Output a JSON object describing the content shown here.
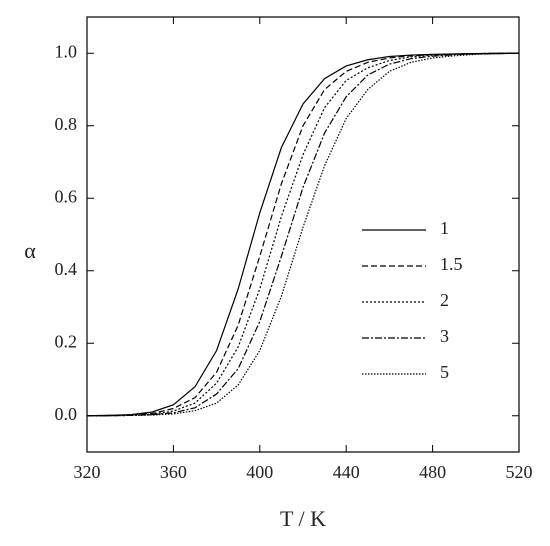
{
  "chart_data": {
    "type": "line",
    "xlabel": "T / K",
    "ylabel": "α",
    "x": [
      320,
      330,
      340,
      350,
      360,
      370,
      380,
      390,
      400,
      410,
      420,
      430,
      440,
      450,
      460,
      470,
      480,
      490,
      500,
      510,
      520
    ],
    "series": [
      {
        "name": "1",
        "color": "#000000",
        "dash": "none",
        "values": [
          0,
          0.001,
          0.003,
          0.01,
          0.03,
          0.08,
          0.18,
          0.35,
          0.56,
          0.74,
          0.86,
          0.93,
          0.965,
          0.982,
          0.991,
          0.995,
          0.997,
          0.998,
          0.999,
          1,
          1
        ]
      },
      {
        "name": "1.5",
        "color": "#000000",
        "dash": "6,3",
        "values": [
          0,
          0.001,
          0.002,
          0.006,
          0.02,
          0.05,
          0.12,
          0.25,
          0.44,
          0.64,
          0.8,
          0.9,
          0.95,
          0.975,
          0.987,
          0.993,
          0.996,
          0.998,
          0.999,
          1,
          1
        ]
      },
      {
        "name": "2",
        "color": "#000000",
        "dash": "2,2",
        "values": [
          0,
          0,
          0.001,
          0.004,
          0.013,
          0.035,
          0.09,
          0.19,
          0.35,
          0.55,
          0.72,
          0.85,
          0.925,
          0.96,
          0.98,
          0.99,
          0.995,
          0.997,
          0.999,
          0.999,
          1
        ]
      },
      {
        "name": "3",
        "color": "#000000",
        "dash": "7,2,2,2",
        "values": [
          0,
          0,
          0.001,
          0.003,
          0.008,
          0.022,
          0.06,
          0.13,
          0.26,
          0.44,
          0.63,
          0.78,
          0.88,
          0.94,
          0.97,
          0.985,
          0.992,
          0.996,
          0.998,
          0.999,
          1
        ]
      },
      {
        "name": "5",
        "color": "#000000",
        "dash": "1.5,1.5",
        "values": [
          0,
          0,
          0.001,
          0.002,
          0.005,
          0.014,
          0.035,
          0.085,
          0.18,
          0.33,
          0.52,
          0.69,
          0.82,
          0.9,
          0.95,
          0.975,
          0.987,
          0.993,
          0.997,
          0.999,
          1
        ]
      }
    ],
    "xlim": [
      320,
      520
    ],
    "xticks": [
      320,
      360,
      400,
      440,
      480,
      520
    ],
    "ylim": [
      -0.1,
      1.1
    ],
    "yticks": [
      {
        "value": 0,
        "label": "0.0"
      },
      0.2,
      0.4,
      0.6,
      0.8,
      {
        "value": 1,
        "label": "1.0"
      }
    ],
    "legend": "right",
    "grid": false
  }
}
